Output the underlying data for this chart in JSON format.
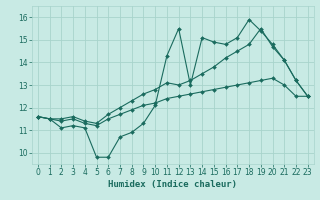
{
  "title": "",
  "xlabel": "Humidex (Indice chaleur)",
  "ylabel": "",
  "xlim": [
    -0.5,
    23.5
  ],
  "ylim": [
    9.5,
    16.5
  ],
  "yticks": [
    10,
    11,
    12,
    13,
    14,
    15,
    16
  ],
  "xticks": [
    0,
    1,
    2,
    3,
    4,
    5,
    6,
    7,
    8,
    9,
    10,
    11,
    12,
    13,
    14,
    15,
    16,
    17,
    18,
    19,
    20,
    21,
    22,
    23
  ],
  "bg_color": "#c8eae4",
  "line_color": "#1a6b5e",
  "grid_color": "#a8d4cc",
  "line1_x": [
    0,
    1,
    2,
    3,
    4,
    5,
    6,
    7,
    8,
    9,
    10,
    11,
    12,
    13,
    14,
    15,
    16,
    17,
    18,
    19,
    20,
    21,
    22,
    23
  ],
  "line1_y": [
    11.6,
    11.5,
    11.1,
    11.2,
    11.1,
    9.8,
    9.8,
    10.7,
    10.9,
    11.3,
    12.1,
    14.3,
    15.5,
    13.0,
    15.1,
    14.9,
    14.8,
    15.1,
    15.9,
    15.4,
    14.8,
    14.1,
    13.2,
    12.5
  ],
  "line2_x": [
    0,
    1,
    2,
    3,
    4,
    5,
    6,
    7,
    8,
    9,
    10,
    11,
    12,
    13,
    14,
    15,
    16,
    17,
    18,
    19,
    20,
    21,
    22,
    23
  ],
  "line2_y": [
    11.6,
    11.5,
    11.5,
    11.6,
    11.4,
    11.3,
    11.7,
    12.0,
    12.3,
    12.6,
    12.8,
    13.1,
    13.0,
    13.2,
    13.5,
    13.8,
    14.2,
    14.5,
    14.8,
    15.5,
    14.7,
    14.1,
    13.2,
    12.5
  ],
  "line3_x": [
    0,
    1,
    2,
    3,
    4,
    5,
    6,
    7,
    8,
    9,
    10,
    11,
    12,
    13,
    14,
    15,
    16,
    17,
    18,
    19,
    20,
    21,
    22,
    23
  ],
  "line3_y": [
    11.6,
    11.5,
    11.4,
    11.5,
    11.3,
    11.2,
    11.5,
    11.7,
    11.9,
    12.1,
    12.2,
    12.4,
    12.5,
    12.6,
    12.7,
    12.8,
    12.9,
    13.0,
    13.1,
    13.2,
    13.3,
    13.0,
    12.5,
    12.5
  ]
}
